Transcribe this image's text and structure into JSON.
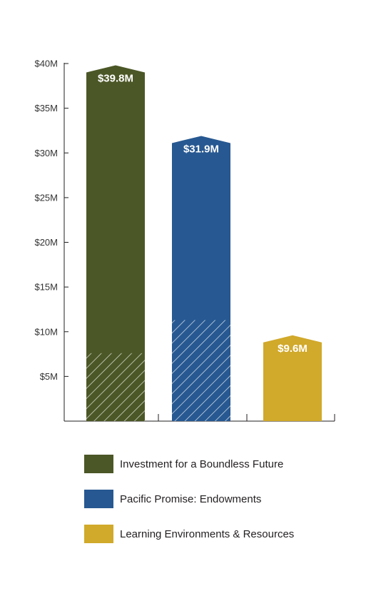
{
  "chart_data": {
    "type": "bar",
    "title": "",
    "xlabel": "",
    "ylabel": "",
    "ylim": [
      0,
      40
    ],
    "yticks": [
      {
        "value": 5,
        "label": "$5M"
      },
      {
        "value": 10,
        "label": "$10M"
      },
      {
        "value": 15,
        "label": "$15M"
      },
      {
        "value": 20,
        "label": "$20M"
      },
      {
        "value": 25,
        "label": "$25M"
      },
      {
        "value": 30,
        "label": "$30M"
      },
      {
        "value": 35,
        "label": "$35M"
      },
      {
        "value": 40,
        "label": "$40M"
      }
    ],
    "grid": false,
    "legend_position": "bottom",
    "bars": [
      {
        "name": "Investment for a Boundless Future",
        "value": 39.8,
        "label": "$39.8M",
        "color": "#4b5726",
        "hatched_portion": 7.6
      },
      {
        "name": "Pacific Promise: Endowments",
        "value": 31.9,
        "label": "$31.9M",
        "color": "#275891",
        "hatched_portion": 11.3
      },
      {
        "name": "Learning Environments & Resources",
        "value": 9.6,
        "label": "$9.6M",
        "color": "#d1a92b",
        "hatched_portion": 0
      }
    ]
  }
}
